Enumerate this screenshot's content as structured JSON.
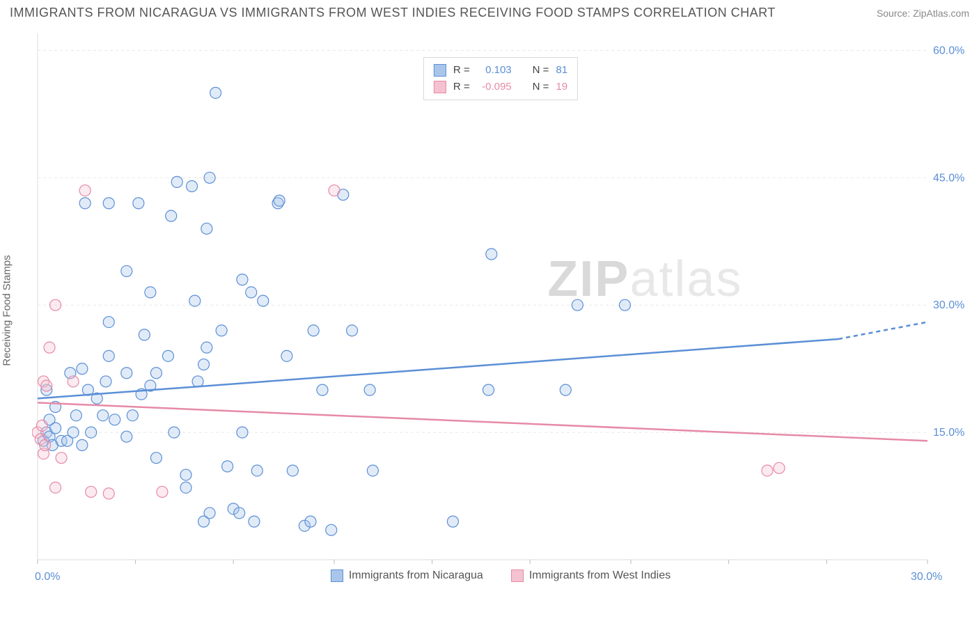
{
  "title": "IMMIGRANTS FROM NICARAGUA VS IMMIGRANTS FROM WEST INDIES RECEIVING FOOD STAMPS CORRELATION CHART",
  "source_label": "Source: ",
  "source_name": "ZipAtlas.com",
  "ylabel": "Receiving Food Stamps",
  "watermark_bold": "ZIP",
  "watermark_rest": "atlas",
  "chart": {
    "type": "scatter",
    "background_color": "#ffffff",
    "grid_color": "#e8e8e8",
    "axis_color": "#dddddd",
    "xlim": [
      0,
      30
    ],
    "ylim": [
      0,
      62
    ],
    "x_ticks": [
      0,
      3.3,
      6.6,
      10,
      13.3,
      16.6,
      20,
      23.3,
      26.6,
      30
    ],
    "x_tick_labels_shown": {
      "0": "0.0%",
      "30": "30.0%"
    },
    "y_gridlines": [
      15,
      30,
      45,
      60
    ],
    "y_tick_labels": {
      "15": "15.0%",
      "30": "30.0%",
      "45": "45.0%",
      "60": "60.0%"
    },
    "x_label_color": "#5b8fd6",
    "y_label_color": "#5b8fd6",
    "marker_radius": 8,
    "marker_stroke_width": 1.2,
    "marker_fill_opacity": 0.35,
    "trend_line_width": 2.5,
    "series": [
      {
        "name": "Immigrants from Nicaragua",
        "color": "#5b8fd6",
        "fill": "#a9c6ea",
        "stroke": "#5b8fd6",
        "R": "0.103",
        "N": "81",
        "trend": {
          "x1": 0,
          "y1": 19.0,
          "x2": 27,
          "y2": 26.0,
          "dash_x1": 27,
          "dash_y1": 26.0,
          "dash_x2": 30,
          "dash_y2": 28.0
        },
        "points": [
          [
            0.2,
            14
          ],
          [
            0.3,
            15
          ],
          [
            0.4,
            14.5
          ],
          [
            0.5,
            13.5
          ],
          [
            0.6,
            15.5
          ],
          [
            0.4,
            16.5
          ],
          [
            0.8,
            14
          ],
          [
            0.6,
            18
          ],
          [
            0.3,
            20
          ],
          [
            1.0,
            14
          ],
          [
            1.2,
            15
          ],
          [
            1.1,
            22
          ],
          [
            1.3,
            17
          ],
          [
            1.5,
            22.5
          ],
          [
            1.5,
            13.5
          ],
          [
            1.8,
            15
          ],
          [
            1.7,
            20
          ],
          [
            1.6,
            42
          ],
          [
            2.0,
            19
          ],
          [
            2.2,
            17
          ],
          [
            2.3,
            21
          ],
          [
            2.4,
            24
          ],
          [
            2.4,
            42
          ],
          [
            2.6,
            16.5
          ],
          [
            2.4,
            28
          ],
          [
            3.0,
            14.5
          ],
          [
            3.0,
            22
          ],
          [
            3.0,
            34
          ],
          [
            3.2,
            17
          ],
          [
            3.4,
            42
          ],
          [
            3.5,
            19.5
          ],
          [
            3.6,
            26.5
          ],
          [
            3.8,
            20.5
          ],
          [
            3.8,
            31.5
          ],
          [
            4.0,
            12
          ],
          [
            4.0,
            22
          ],
          [
            4.4,
            24
          ],
          [
            4.5,
            40.5
          ],
          [
            4.6,
            15
          ],
          [
            4.7,
            44.5
          ],
          [
            5.0,
            10
          ],
          [
            5.0,
            8.5
          ],
          [
            5.2,
            44
          ],
          [
            5.3,
            30.5
          ],
          [
            5.4,
            21
          ],
          [
            5.6,
            23
          ],
          [
            5.6,
            4.5
          ],
          [
            5.7,
            25
          ],
          [
            5.7,
            39
          ],
          [
            5.8,
            45
          ],
          [
            6.0,
            55
          ],
          [
            5.8,
            5.5
          ],
          [
            6.2,
            27
          ],
          [
            6.4,
            11
          ],
          [
            6.6,
            6
          ],
          [
            6.8,
            5.5
          ],
          [
            6.9,
            15
          ],
          [
            6.9,
            33
          ],
          [
            7.3,
            4.5
          ],
          [
            7.2,
            31.5
          ],
          [
            7.4,
            10.5
          ],
          [
            7.6,
            30.5
          ],
          [
            8.1,
            42
          ],
          [
            8.15,
            42.3
          ],
          [
            8.4,
            24
          ],
          [
            8.6,
            10.5
          ],
          [
            9.0,
            4
          ],
          [
            9.2,
            4.5
          ],
          [
            9.3,
            27
          ],
          [
            9.6,
            20
          ],
          [
            9.9,
            3.5
          ],
          [
            10.3,
            43
          ],
          [
            10.6,
            27
          ],
          [
            11.2,
            20
          ],
          [
            11.3,
            10.5
          ],
          [
            14.0,
            4.5
          ],
          [
            15.2,
            20
          ],
          [
            15.3,
            36
          ],
          [
            17.8,
            20
          ],
          [
            19.8,
            30
          ],
          [
            18.2,
            30
          ]
        ]
      },
      {
        "name": "Immigrants from West Indies",
        "color": "#e68aa6",
        "fill": "#f4c2d0",
        "stroke": "#e68aa6",
        "R": "-0.095",
        "N": "19",
        "trend": {
          "x1": 0,
          "y1": 18.5,
          "x2": 30,
          "y2": 14.0
        },
        "points": [
          [
            0.0,
            15
          ],
          [
            0.1,
            14.2
          ],
          [
            0.15,
            15.8
          ],
          [
            0.2,
            12.5
          ],
          [
            0.25,
            13.5
          ],
          [
            0.2,
            21
          ],
          [
            0.3,
            20.5
          ],
          [
            0.4,
            25
          ],
          [
            0.6,
            8.5
          ],
          [
            0.6,
            30
          ],
          [
            0.8,
            12
          ],
          [
            1.2,
            21
          ],
          [
            1.6,
            43.5
          ],
          [
            1.8,
            8
          ],
          [
            2.4,
            7.8
          ],
          [
            4.2,
            8
          ],
          [
            10.0,
            43.5
          ],
          [
            24.6,
            10.5
          ],
          [
            25.0,
            10.8
          ]
        ]
      }
    ]
  },
  "legend_top": {
    "r_label": "R =",
    "n_label": "N ="
  }
}
